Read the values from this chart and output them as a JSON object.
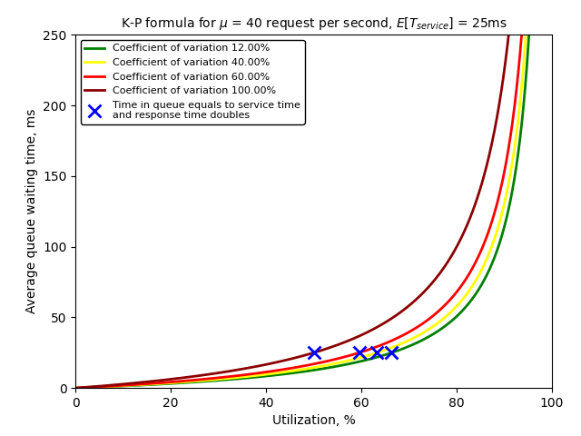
{
  "title": "K-P formula for $\\mu$ = 40 request per second, $E[T_{service}]$ = 25ms",
  "xlabel": "Utilization, %",
  "ylabel": "Average queue waiting time, ms",
  "mu": 40,
  "E_service_ms": 25,
  "cv_list": [
    0.12,
    0.4,
    0.6,
    1.0
  ],
  "cv_labels": [
    "12.00%",
    "40.00%",
    "60.00%",
    "100.00%"
  ],
  "line_colors": [
    "green",
    "yellow",
    "red",
    "darkred"
  ],
  "ylim": [
    0,
    250
  ],
  "xlim": [
    0,
    100
  ],
  "legend_loc": "upper left",
  "marker_color": "blue",
  "marker": "x",
  "marker_size": 10,
  "marker_linewidth": 2
}
